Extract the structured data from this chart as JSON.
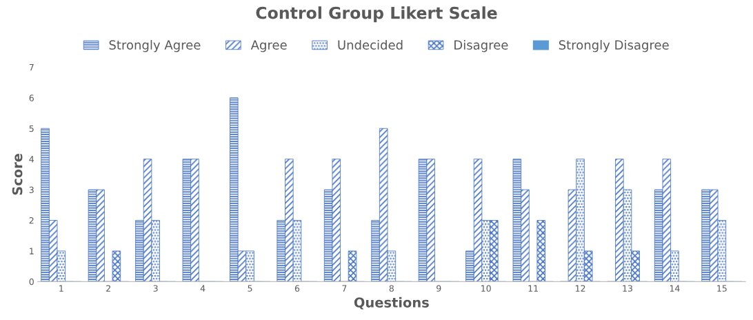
{
  "chart_data": {
    "type": "bar",
    "title": "Control Group Likert Scale",
    "xlabel": "Questions",
    "ylabel": "Score",
    "categories": [
      "1",
      "2",
      "3",
      "4",
      "5",
      "6",
      "7",
      "8",
      "9",
      "10",
      "11",
      "12",
      "13",
      "14",
      "15"
    ],
    "series": [
      {
        "name": "Strongly Agree",
        "color": "#4472c4",
        "values": [
          5,
          3,
          2,
          4,
          6,
          2,
          3,
          2,
          4,
          1,
          4,
          0,
          0,
          3,
          3
        ]
      },
      {
        "name": "Agree",
        "color": "#4472c4",
        "values": [
          2,
          3,
          4,
          4,
          1,
          4,
          4,
          5,
          4,
          4,
          3,
          3,
          4,
          4,
          3
        ]
      },
      {
        "name": "Undecided",
        "color": "#4472c4",
        "values": [
          1,
          0,
          2,
          0,
          1,
          2,
          0,
          1,
          0,
          2,
          0,
          4,
          3,
          1,
          2
        ]
      },
      {
        "name": "Disagree",
        "color": "#4472c4",
        "values": [
          0,
          1,
          0,
          0,
          0,
          0,
          1,
          0,
          0,
          2,
          2,
          1,
          1,
          0,
          0
        ]
      },
      {
        "name": "Strongly Disagree",
        "color": "#5b9bd5",
        "values": [
          0,
          0,
          0,
          0,
          0,
          0,
          0,
          0,
          0,
          0,
          0,
          0,
          0,
          0,
          0
        ]
      }
    ],
    "ylim": [
      0,
      7
    ],
    "yticks": [
      0,
      1,
      2,
      3,
      4,
      5,
      6,
      7
    ],
    "grid": false,
    "legend": "top"
  }
}
